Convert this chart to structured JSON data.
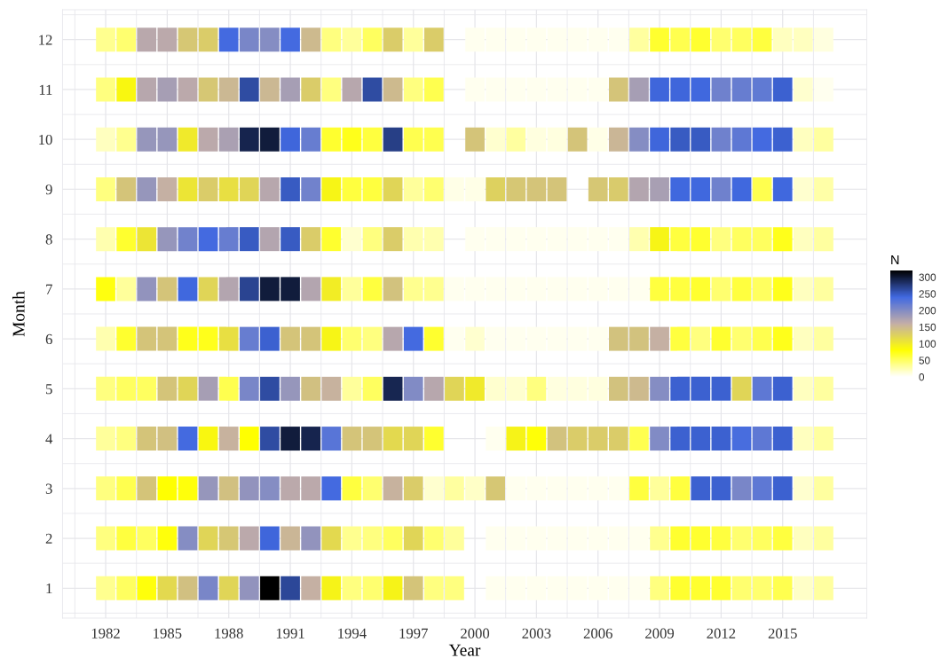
{
  "chart_data": {
    "type": "heatmap",
    "xlabel": "Year",
    "ylabel": "Month",
    "clabel": "N",
    "categories": [
      "1982",
      null,
      null,
      "1985",
      null,
      null,
      "1988",
      null,
      null,
      "1991",
      null,
      null,
      "1994",
      null,
      null,
      "1997",
      null,
      null,
      "2000",
      null,
      null,
      "2003",
      null,
      null,
      "2006",
      null,
      null,
      "2009",
      null,
      null,
      "2012",
      null,
      null,
      "2015",
      null,
      null
    ],
    "y_categories": [
      "12",
      "11",
      "10",
      "9",
      "8",
      "7",
      "6",
      "5",
      "4",
      "3",
      "2",
      "1"
    ],
    "cells": [
      [
        35,
        45,
        167,
        165,
        135,
        130,
        238,
        205,
        198,
        238,
        148,
        40,
        32,
        50,
        130,
        32,
        130,
        null,
        5,
        5,
        5,
        5,
        5,
        5,
        5,
        5,
        30,
        65,
        55,
        65,
        45,
        50,
        60,
        20,
        20,
        10
      ],
      [
        40,
        88,
        168,
        178,
        165,
        135,
        150,
        262,
        150,
        178,
        130,
        40,
        168,
        262,
        148,
        40,
        55,
        null,
        5,
        5,
        5,
        5,
        5,
        5,
        5,
        138,
        178,
        242,
        242,
        240,
        212,
        217,
        220,
        245,
        15,
        5
      ],
      [
        20,
        35,
        188,
        188,
        100,
        165,
        175,
        292,
        298,
        242,
        217,
        65,
        72,
        60,
        272,
        55,
        55,
        null,
        138,
        15,
        30,
        10,
        10,
        138,
        8,
        152,
        198,
        242,
        250,
        250,
        212,
        222,
        238,
        245,
        20,
        30
      ],
      [
        40,
        138,
        188,
        158,
        105,
        130,
        112,
        122,
        168,
        250,
        210,
        90,
        60,
        60,
        122,
        32,
        45,
        8,
        8,
        125,
        135,
        138,
        138,
        null,
        135,
        132,
        170,
        177,
        240,
        240,
        212,
        240,
        55,
        240,
        15,
        28
      ],
      [
        25,
        65,
        105,
        188,
        210,
        238,
        217,
        250,
        170,
        250,
        130,
        65,
        15,
        40,
        130,
        25,
        25,
        null,
        6,
        6,
        6,
        6,
        6,
        6,
        6,
        6,
        25,
        90,
        60,
        65,
        40,
        50,
        50,
        72,
        20,
        30
      ],
      [
        75,
        32,
        190,
        138,
        240,
        122,
        170,
        268,
        298,
        298,
        170,
        98,
        32,
        60,
        140,
        35,
        35,
        5,
        5,
        5,
        5,
        5,
        5,
        5,
        5,
        5,
        5,
        60,
        60,
        65,
        45,
        60,
        50,
        72,
        20,
        30
      ],
      [
        25,
        65,
        138,
        138,
        72,
        72,
        112,
        217,
        245,
        138,
        138,
        90,
        45,
        40,
        168,
        238,
        65,
        5,
        15,
        6,
        6,
        6,
        6,
        6,
        6,
        140,
        140,
        158,
        60,
        40,
        65,
        45,
        55,
        72,
        20,
        30
      ],
      [
        40,
        50,
        50,
        138,
        122,
        178,
        55,
        205,
        262,
        188,
        142,
        155,
        32,
        50,
        290,
        200,
        168,
        122,
        100,
        15,
        15,
        40,
        10,
        10,
        10,
        140,
        148,
        198,
        245,
        245,
        245,
        122,
        222,
        245,
        20,
        30
      ],
      [
        32,
        40,
        138,
        142,
        238,
        88,
        155,
        80,
        262,
        298,
        292,
        225,
        138,
        138,
        118,
        122,
        65,
        null,
        null,
        5,
        92,
        78,
        140,
        130,
        130,
        130,
        55,
        200,
        245,
        245,
        245,
        235,
        222,
        245,
        20,
        30
      ],
      [
        40,
        55,
        138,
        80,
        77,
        188,
        142,
        190,
        198,
        165,
        165,
        238,
        60,
        45,
        155,
        130,
        15,
        30,
        18,
        135,
        6,
        6,
        6,
        6,
        6,
        6,
        60,
        32,
        60,
        245,
        245,
        205,
        222,
        245,
        15,
        30
      ],
      [
        40,
        60,
        50,
        77,
        198,
        122,
        135,
        165,
        242,
        152,
        190,
        118,
        35,
        40,
        50,
        122,
        45,
        32,
        null,
        6,
        6,
        6,
        6,
        6,
        6,
        6,
        6,
        35,
        65,
        65,
        60,
        45,
        50,
        60,
        20,
        30
      ],
      [
        35,
        50,
        77,
        118,
        142,
        205,
        122,
        190,
        320,
        265,
        158,
        92,
        40,
        45,
        92,
        138,
        40,
        40,
        null,
        6,
        6,
        6,
        6,
        6,
        6,
        6,
        6,
        40,
        65,
        65,
        65,
        45,
        45,
        55,
        18,
        30
      ]
    ],
    "clim": [
      0,
      320
    ],
    "cticks": [
      0,
      50,
      100,
      150,
      200,
      250,
      300
    ],
    "grid": true
  }
}
